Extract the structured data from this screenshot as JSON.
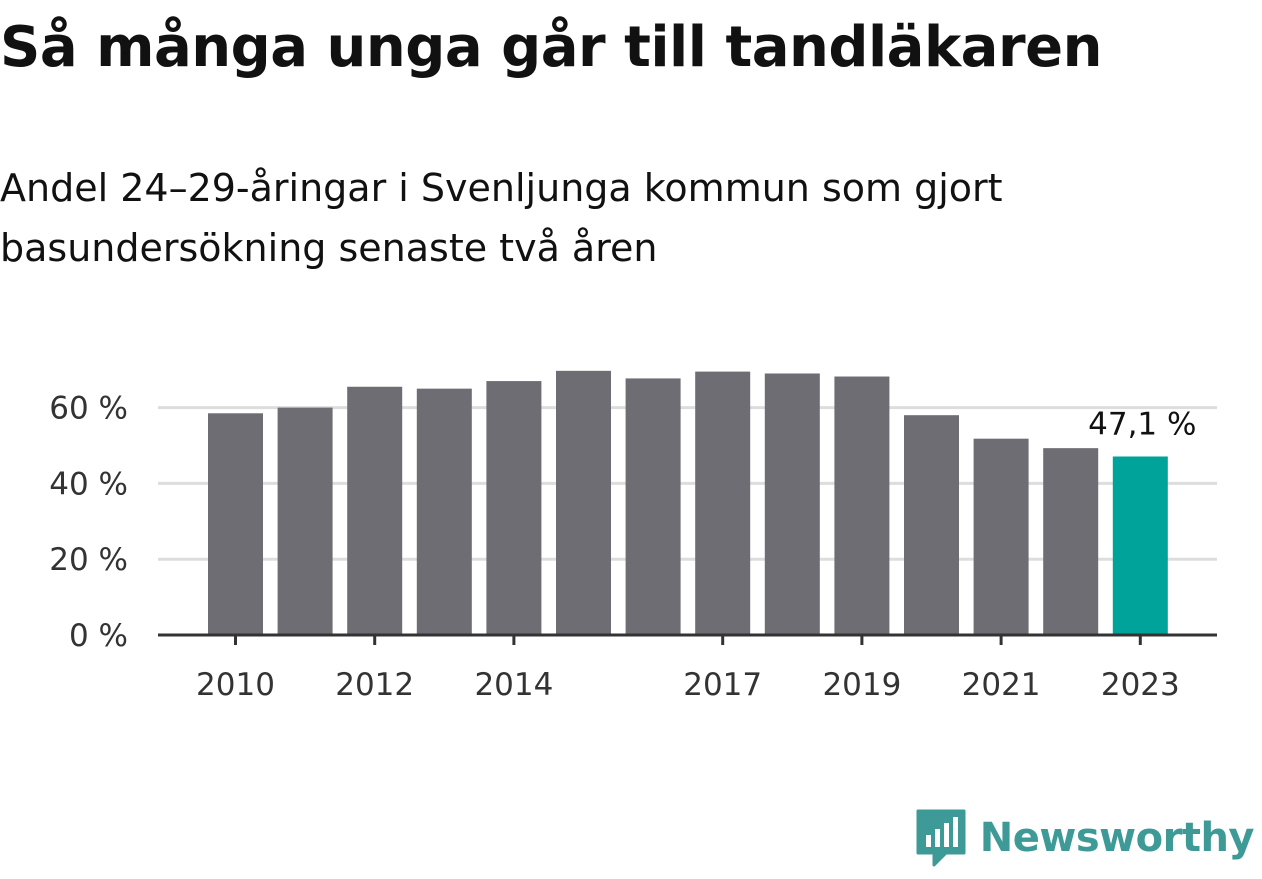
{
  "chart_data": {
    "type": "bar",
    "title": "Så många unga går till tandläkaren",
    "subtitle": "Andel 24–29-åringar i Svenljunga kommun som gjort basundersökning senaste två åren",
    "categories": [
      "2010",
      "2011",
      "2012",
      "2013",
      "2014",
      "2015",
      "2016",
      "2017",
      "2018",
      "2019",
      "2020",
      "2021",
      "2022",
      "2023"
    ],
    "x_tick_labels": [
      "2010",
      "2012",
      "2014",
      "2017",
      "2019",
      "2021",
      "2023"
    ],
    "values": [
      58.5,
      60.0,
      65.5,
      65.0,
      67.0,
      69.7,
      67.7,
      69.5,
      69.0,
      68.2,
      58.0,
      51.8,
      49.3,
      47.1
    ],
    "ylim": [
      0,
      70
    ],
    "y_ticks": [
      0,
      20,
      40,
      60
    ],
    "y_tick_labels": [
      "0 %",
      "20 %",
      "40 %",
      "60 %"
    ],
    "annotation": "47,1 %",
    "grid": true,
    "xlabel": "",
    "ylabel": ""
  },
  "colors": {
    "bar": "#6e6d73",
    "highlight": "#00a39a",
    "grid": "#dddddd",
    "axis": "#333333",
    "brand": "#3d9a96"
  },
  "brand": {
    "name": "Newsworthy",
    "icon": "newsworthy-logo-icon"
  }
}
